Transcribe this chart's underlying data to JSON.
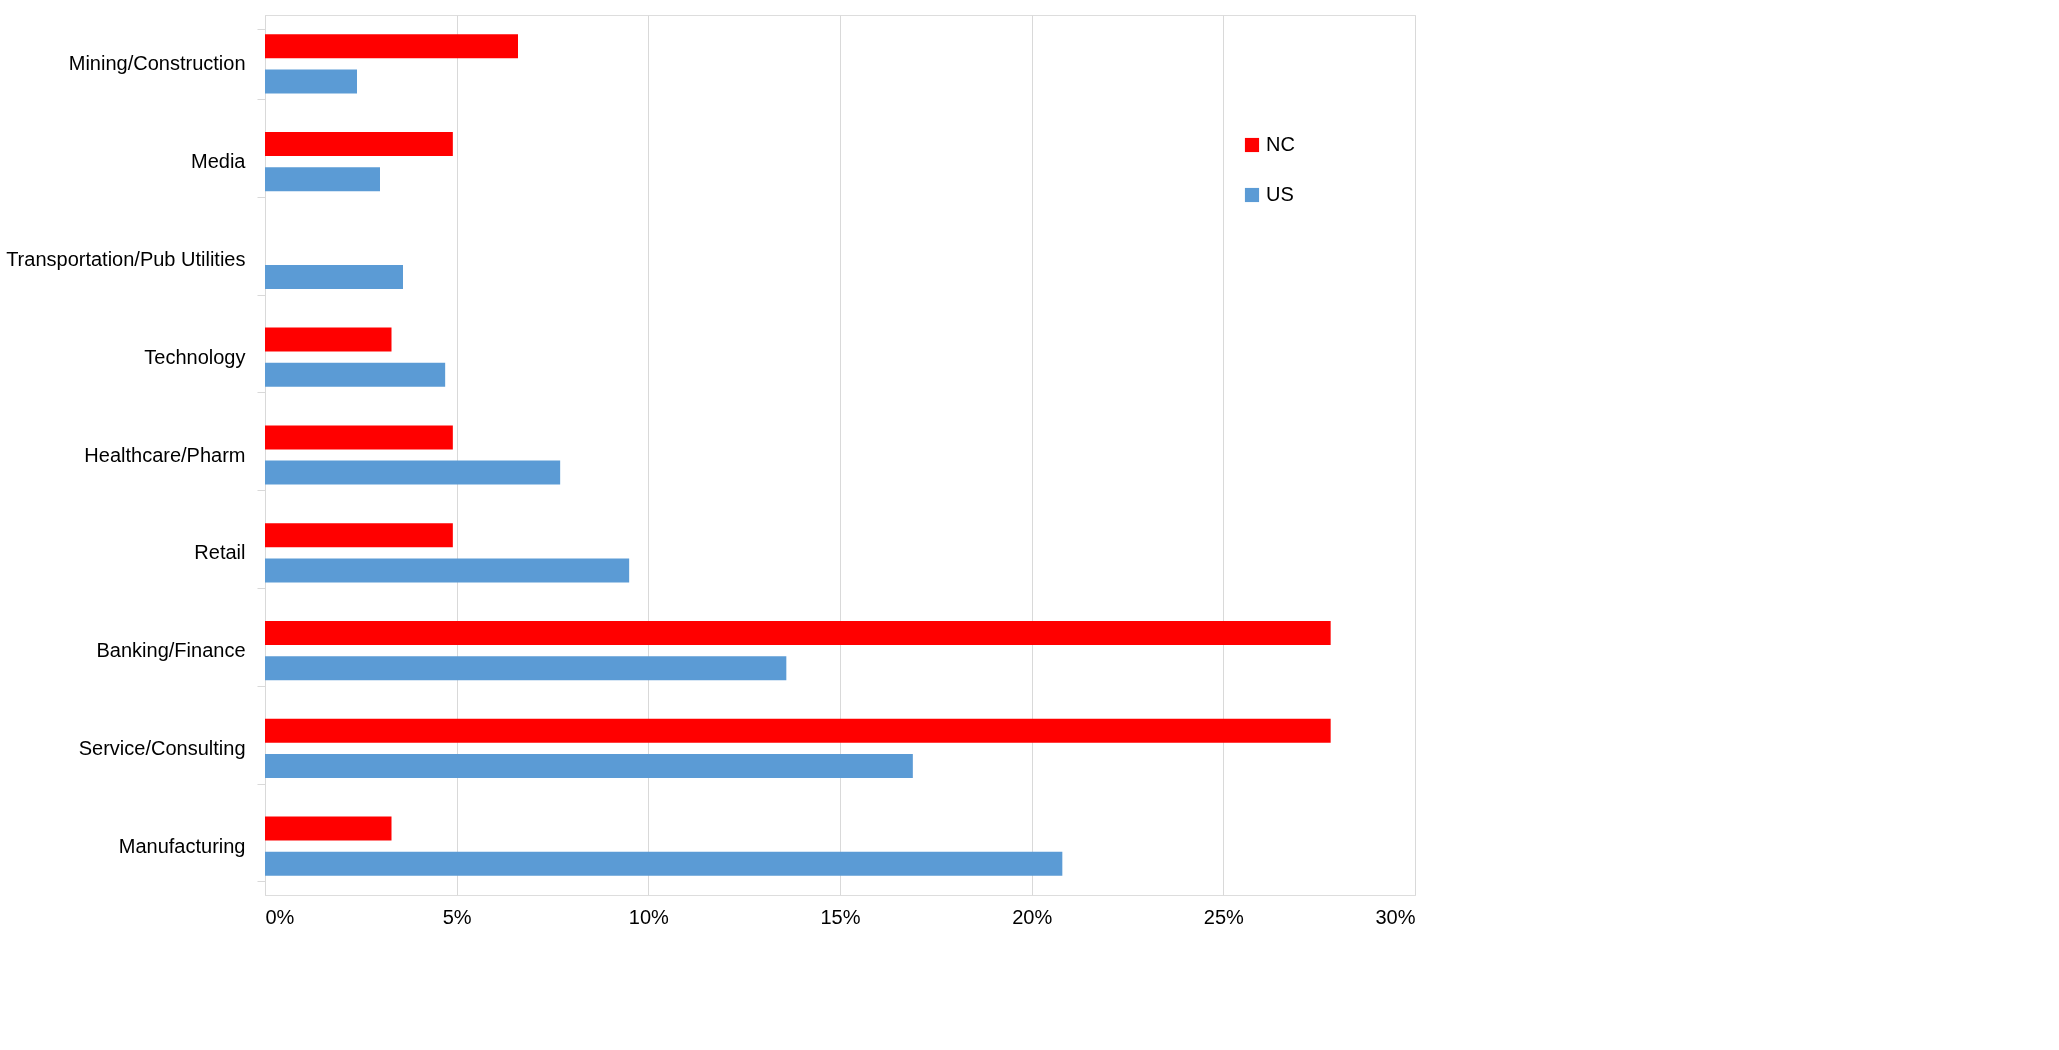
{
  "chart_data": {
    "type": "bar",
    "orientation": "horizontal",
    "categories": [
      "Mining/Construction",
      "Media",
      "Transportation/Pub Utilities",
      "Technology",
      "Healthcare/Pharm",
      "Retail",
      "Banking/Finance",
      "Service/Consulting",
      "Manufacturing"
    ],
    "series": [
      {
        "name": "NC",
        "color": "#ff0000",
        "values": [
          6.6,
          4.9,
          0,
          3.3,
          4.9,
          4.9,
          27.8,
          27.8,
          3.3
        ]
      },
      {
        "name": "US",
        "color": "#5b9bd5",
        "values": [
          2.4,
          3.0,
          3.6,
          4.7,
          7.7,
          9.5,
          13.6,
          16.9,
          20.8
        ]
      }
    ],
    "xlim": [
      0,
      30
    ],
    "xticks": [
      {
        "value": 0,
        "label": "0%"
      },
      {
        "value": 5,
        "label": "5%"
      },
      {
        "value": 10,
        "label": "10%"
      },
      {
        "value": 15,
        "label": "15%"
      },
      {
        "value": 20,
        "label": "20%"
      },
      {
        "value": 25,
        "label": "25%"
      },
      {
        "value": 30,
        "label": "30%"
      }
    ],
    "grid": "x",
    "legend": "top right"
  }
}
